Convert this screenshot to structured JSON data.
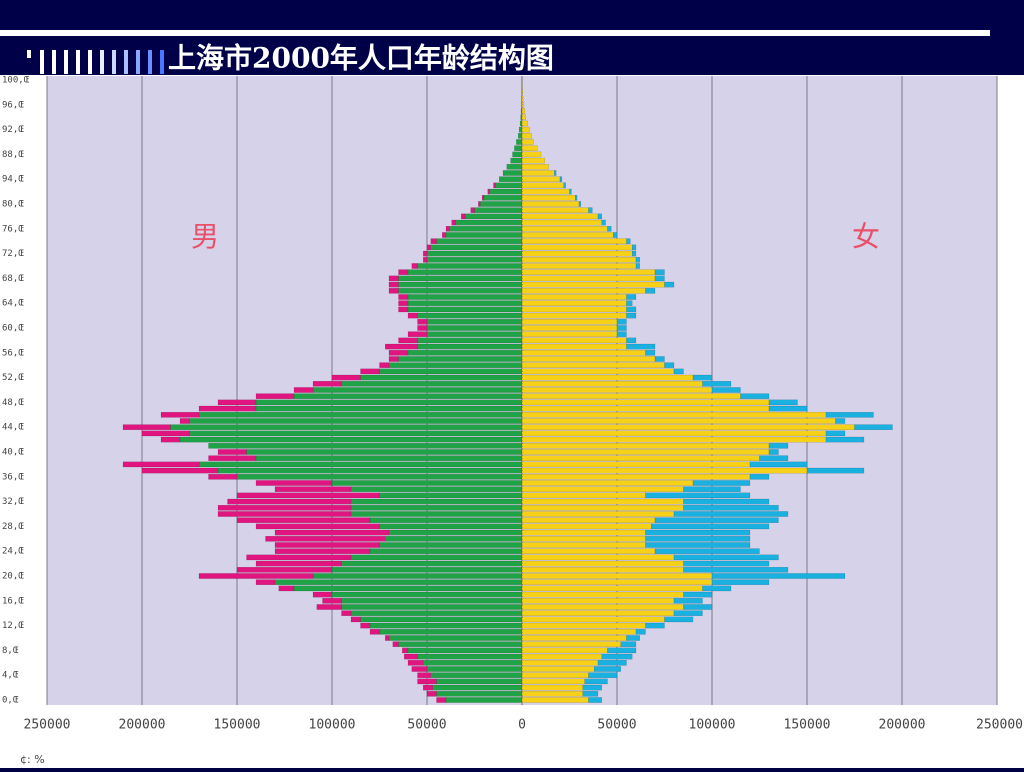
{
  "chart_data": {
    "type": "pyramid",
    "title": "上海市2000年人口年龄结构图",
    "left_label": "男",
    "right_label": "女",
    "footnote": "¢: %",
    "xlim": [
      -250000,
      250000
    ],
    "xticks": [
      {
        "value": -250000,
        "label": "250000"
      },
      {
        "value": -200000,
        "label": "200000"
      },
      {
        "value": -150000,
        "label": "150000"
      },
      {
        "value": -100000,
        "label": "100000"
      },
      {
        "value": -50000,
        "label": "50000"
      },
      0,
      50000,
      100000,
      150000,
      200000,
      250000
    ],
    "grid": true,
    "categories": [
      "0,Œ",
      null,
      null,
      null,
      "4,Œ",
      null,
      null,
      null,
      "8,Œ",
      null,
      null,
      null,
      "12,Œ",
      null,
      null,
      null,
      "16,Œ",
      null,
      null,
      null,
      "20,Œ",
      null,
      null,
      null,
      "24,Œ",
      null,
      null,
      null,
      "28,Œ",
      null,
      null,
      null,
      "32,Œ",
      null,
      null,
      null,
      "36,Œ",
      null,
      null,
      null,
      "40,Œ",
      null,
      null,
      null,
      "44,Œ",
      null,
      null,
      null,
      "48,Œ",
      null,
      null,
      null,
      "52,Œ",
      null,
      null,
      null,
      "56,Œ",
      null,
      null,
      null,
      "60,Œ",
      null,
      null,
      null,
      "64,Œ",
      null,
      null,
      null,
      "68,Œ",
      null,
      null,
      null,
      "72,Œ",
      null,
      null,
      null,
      "76,Œ",
      null,
      null,
      null,
      "80,Œ",
      null,
      null,
      null,
      "94,Œ",
      null,
      null,
      null,
      "88,Œ",
      null,
      null,
      null,
      "92,Œ",
      null,
      null,
      null,
      "96,Œ",
      null,
      null,
      null,
      "100,Œ"
    ],
    "series": [
      {
        "side": "left",
        "color": "#1fa346",
        "values": [
          40000,
          45000,
          47000,
          45000,
          48000,
          50000,
          52000,
          55000,
          60000,
          65000,
          70000,
          75000,
          80000,
          85000,
          90000,
          95000,
          95000,
          100000,
          120000,
          130000,
          110000,
          100000,
          95000,
          90000,
          80000,
          75000,
          72000,
          70000,
          75000,
          80000,
          90000,
          90000,
          90000,
          75000,
          90000,
          100000,
          150000,
          160000,
          170000,
          140000,
          145000,
          165000,
          180000,
          175000,
          185000,
          175000,
          170000,
          140000,
          140000,
          120000,
          110000,
          95000,
          85000,
          75000,
          70000,
          65000,
          60000,
          55000,
          55000,
          50000,
          50000,
          50000,
          55000,
          60000,
          60000,
          60000,
          65000,
          65000,
          65000,
          60000,
          55000,
          50000,
          50000,
          48000,
          45000,
          40000,
          38000,
          35000,
          30000,
          25000,
          22000,
          20000,
          17000,
          14000,
          12000,
          10000,
          8000,
          6000,
          5000,
          4000,
          3000,
          2000,
          1500,
          1000,
          700,
          500,
          300,
          200,
          100,
          50,
          30
        ]
      },
      {
        "side": "left",
        "color": "#e0157f",
        "values": [
          5000,
          5000,
          5000,
          10000,
          7000,
          8000,
          8000,
          7000,
          3000,
          3000,
          2000,
          5000,
          5000,
          5000,
          5000,
          13000,
          10000,
          10000,
          8000,
          10000,
          60000,
          50000,
          45000,
          55000,
          50000,
          55000,
          63000,
          60000,
          65000,
          70000,
          70000,
          70000,
          65000,
          75000,
          40000,
          40000,
          15000,
          40000,
          40000,
          25000,
          15000,
          0,
          10000,
          25000,
          25000,
          5000,
          20000,
          30000,
          20000,
          20000,
          10000,
          15000,
          15000,
          10000,
          5000,
          5000,
          10000,
          17000,
          10000,
          10000,
          5000,
          5000,
          5000,
          5000,
          5000,
          5000,
          5000,
          5000,
          5000,
          5000,
          3000,
          2000,
          2000,
          2000,
          3000,
          2000,
          2000,
          2000,
          2000,
          2000,
          1000,
          1000,
          1000,
          1000,
          0,
          0,
          0,
          0,
          0,
          0,
          0,
          0,
          0,
          0,
          0,
          0,
          0,
          0,
          0,
          0,
          0
        ]
      },
      {
        "side": "right",
        "color": "#f7d117",
        "values": [
          35000,
          32000,
          32000,
          33000,
          35000,
          38000,
          40000,
          42000,
          45000,
          52000,
          55000,
          60000,
          65000,
          75000,
          80000,
          85000,
          80000,
          85000,
          95000,
          100000,
          100000,
          85000,
          85000,
          80000,
          70000,
          65000,
          65000,
          65000,
          68000,
          70000,
          80000,
          85000,
          85000,
          65000,
          85000,
          90000,
          120000,
          150000,
          120000,
          125000,
          130000,
          130000,
          160000,
          160000,
          175000,
          165000,
          160000,
          130000,
          130000,
          115000,
          100000,
          95000,
          90000,
          80000,
          75000,
          70000,
          65000,
          55000,
          55000,
          50000,
          50000,
          50000,
          55000,
          55000,
          55000,
          55000,
          65000,
          75000,
          70000,
          70000,
          60000,
          60000,
          58000,
          58000,
          55000,
          48000,
          45000,
          42000,
          40000,
          35000,
          30000,
          28000,
          25000,
          22000,
          20000,
          17000,
          14000,
          12000,
          10000,
          8000,
          6000,
          5000,
          4000,
          3000,
          2000,
          1500,
          1000,
          600,
          400,
          200,
          100
        ]
      },
      {
        "side": "right",
        "color": "#1ab0e0",
        "values": [
          7000,
          8000,
          10000,
          12000,
          15000,
          14000,
          15000,
          16000,
          15000,
          8000,
          7000,
          5000,
          10000,
          15000,
          15000,
          15000,
          15000,
          15000,
          15000,
          30000,
          70000,
          55000,
          45000,
          55000,
          55000,
          55000,
          55000,
          55000,
          62000,
          65000,
          60000,
          50000,
          45000,
          55000,
          30000,
          30000,
          10000,
          30000,
          30000,
          15000,
          5000,
          10000,
          20000,
          10000,
          20000,
          5000,
          25000,
          20000,
          15000,
          15000,
          15000,
          15000,
          10000,
          5000,
          5000,
          5000,
          5000,
          15000,
          5000,
          5000,
          5000,
          5000,
          5000,
          5000,
          3000,
          5000,
          5000,
          5000,
          5000,
          5000,
          2000,
          2000,
          2000,
          2000,
          2000,
          2000,
          2000,
          2000,
          2000,
          2000,
          1000,
          1000,
          1000,
          1000,
          1000,
          1000,
          0,
          0,
          0,
          0,
          0,
          0,
          0,
          0,
          0,
          0,
          0,
          0,
          0,
          0,
          0
        ]
      }
    ]
  }
}
